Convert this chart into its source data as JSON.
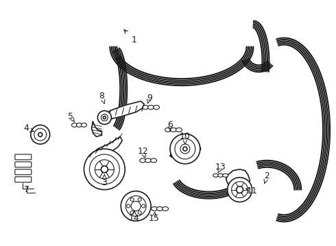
{
  "background": "#ffffff",
  "line_color": "#1a1a1a",
  "lw_belt": 1.5,
  "lw_part": 1.2,
  "lw_thin": 0.8,
  "belt_offsets": [
    -6,
    -3,
    0,
    3,
    6
  ],
  "fig_w": 4.9,
  "fig_h": 3.6,
  "dpi": 100,
  "xlim": [
    0,
    490
  ],
  "ylim": [
    360,
    0
  ]
}
